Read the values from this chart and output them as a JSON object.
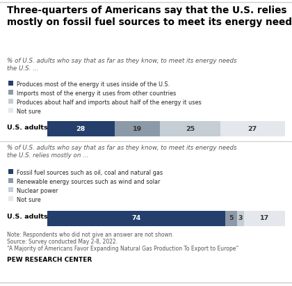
{
  "title": "Three-quarters of Americans say that the U.S. relies\nmostly on fossil fuel sources to meet its energy needs",
  "subtitle1": "% of U.S. adults who say that as far as they know, to meet its energy needs\nthe U.S. ...",
  "subtitle2": "% of U.S. adults who say that as far as they know, to meet its energy needs\nthe U.S. relies mostly on ...",
  "chart1": {
    "legend": [
      "Produces most of the energy it uses inside of the U.S.",
      "Imports most of the energy it uses from other countries",
      "Produces about half and imports about half of the energy it uses",
      "Not sure"
    ],
    "colors": [
      "#243F6B",
      "#8C99A8",
      "#C5CDD5",
      "#E4E8EC"
    ],
    "values": [
      28,
      19,
      25,
      27
    ],
    "label": "U.S. adults"
  },
  "chart2": {
    "legend": [
      "Fossil fuel sources such as oil, coal and natural gas",
      "Renewable energy sources such as wind and solar",
      "Nuclear power",
      "Not sure"
    ],
    "colors": [
      "#243F6B",
      "#8C99A8",
      "#C5CDD5",
      "#E4E8EC"
    ],
    "values": [
      74,
      5,
      3,
      17
    ],
    "label": "U.S. adults"
  },
  "note_line1": "Note: Respondents who did not give an answer are not shown.",
  "note_line2": "Source: Survey conducted May 2-8, 2022.",
  "note_line3": "“A Majority of Americans Favor Expanding Natural Gas Production To Export to Europe”",
  "footer": "PEW RESEARCH CENTER",
  "background_color": "#FFFFFF",
  "text_color_white": "#FFFFFF",
  "text_color_dark": "#333333",
  "text_color_black": "#000000"
}
